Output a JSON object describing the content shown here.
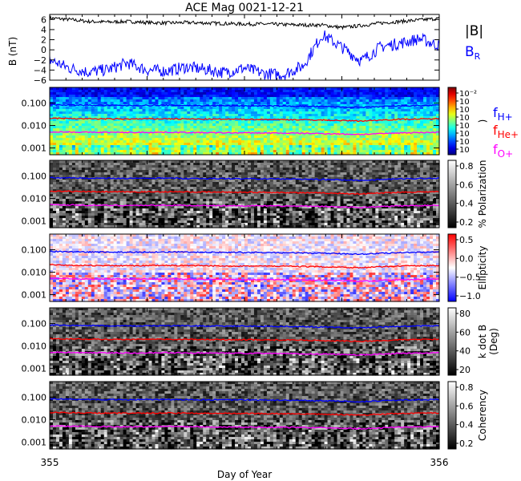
{
  "title": "ACE Mag 0021-12-21",
  "xlabel": "Day of Year",
  "x_ticks": [
    "355",
    "356"
  ],
  "colors": {
    "btotal": "#000000",
    "br": "#0000ff",
    "fH": "#0000ff",
    "fHe": "#ff0000",
    "fO": "#ff00ff"
  },
  "chart_data": [
    {
      "type": "line",
      "panel": "magnetic-field",
      "ylabel": "B (nT)",
      "ylim": [
        -6,
        7
      ],
      "yticks": [
        "6",
        "4",
        "2",
        "0",
        "−2",
        "−4",
        "−6"
      ],
      "x": [
        355.0,
        355.05,
        355.1,
        355.15,
        355.2,
        355.25,
        355.3,
        355.35,
        355.4,
        355.45,
        355.5,
        355.55,
        355.6,
        355.65,
        355.7,
        355.75,
        355.8,
        355.85,
        355.9,
        355.95,
        356.0
      ],
      "series": [
        {
          "name": "|B|",
          "values": [
            6.3,
            6.0,
            5.6,
            5.5,
            5.6,
            5.4,
            5.3,
            5.4,
            5.3,
            5.2,
            5.1,
            5.1,
            5.0,
            4.9,
            4.9,
            4.4,
            4.8,
            5.3,
            5.6,
            5.9,
            6.2
          ]
        },
        {
          "name": "B_R",
          "values": [
            -2.0,
            -3.6,
            -4.4,
            -3.9,
            -2.6,
            -4.0,
            -4.2,
            -3.4,
            -3.9,
            -4.5,
            -3.6,
            -4.7,
            -4.9,
            -3.2,
            3.0,
            0.5,
            -2.2,
            0.6,
            1.3,
            2.2,
            0.8
          ]
        }
      ],
      "legend": [
        "|B|",
        "B",
        "R"
      ]
    },
    {
      "type": "heatmap",
      "panel": "power-spectrum",
      "ylabel": "",
      "yticks": [
        "0.100",
        "0.010",
        "0.001"
      ],
      "colorbar_ticks": [
        "10⁻²",
        "10",
        "10",
        "10",
        "10",
        "10",
        "10",
        "10"
      ],
      "colorbar_label": ")",
      "legend": [
        "f",
        "H+",
        "f",
        "He+",
        "f",
        "O+"
      ]
    },
    {
      "type": "heatmap",
      "panel": "polarization",
      "yticks": [
        "0.100",
        "0.010",
        "0.001"
      ],
      "colorbar_ticks": [
        "0.8",
        "0.6",
        "0.4",
        "0.2"
      ],
      "colorbar_label": "% Polarization"
    },
    {
      "type": "heatmap",
      "panel": "ellipticity",
      "yticks": [
        "0.100",
        "0.010",
        "0.001"
      ],
      "colorbar_ticks": [
        "0.5",
        "0.0",
        "−0.5",
        "−1.0"
      ],
      "colorbar_label": "Ellipticity"
    },
    {
      "type": "heatmap",
      "panel": "k-dot-b",
      "yticks": [
        "0.100",
        "0.010",
        "0.001"
      ],
      "colorbar_ticks": [
        "80",
        "60",
        "40",
        "20"
      ],
      "colorbar_label": [
        "k dot B",
        "(Deg)"
      ]
    },
    {
      "type": "heatmap",
      "panel": "coherency",
      "yticks": [
        "0.100",
        "0.010",
        "0.001"
      ],
      "colorbar_ticks": [
        "0.8",
        "0.6",
        "0.4",
        "0.2"
      ],
      "colorbar_label": "Coherency"
    }
  ],
  "gyro_lines": {
    "x": [
      355.0,
      355.1,
      355.2,
      355.3,
      355.4,
      355.5,
      355.6,
      355.7,
      355.8,
      355.9,
      356.0
    ],
    "fH_hz": [
      0.085,
      0.08,
      0.078,
      0.08,
      0.077,
      0.076,
      0.074,
      0.07,
      0.064,
      0.075,
      0.08
    ],
    "fHe_hz": [
      0.021,
      0.02,
      0.0195,
      0.02,
      0.0192,
      0.019,
      0.0185,
      0.0175,
      0.016,
      0.019,
      0.02
    ],
    "fO_hz": [
      0.0053,
      0.005,
      0.0049,
      0.005,
      0.0048,
      0.0047,
      0.0046,
      0.0044,
      0.004,
      0.0047,
      0.005
    ]
  }
}
